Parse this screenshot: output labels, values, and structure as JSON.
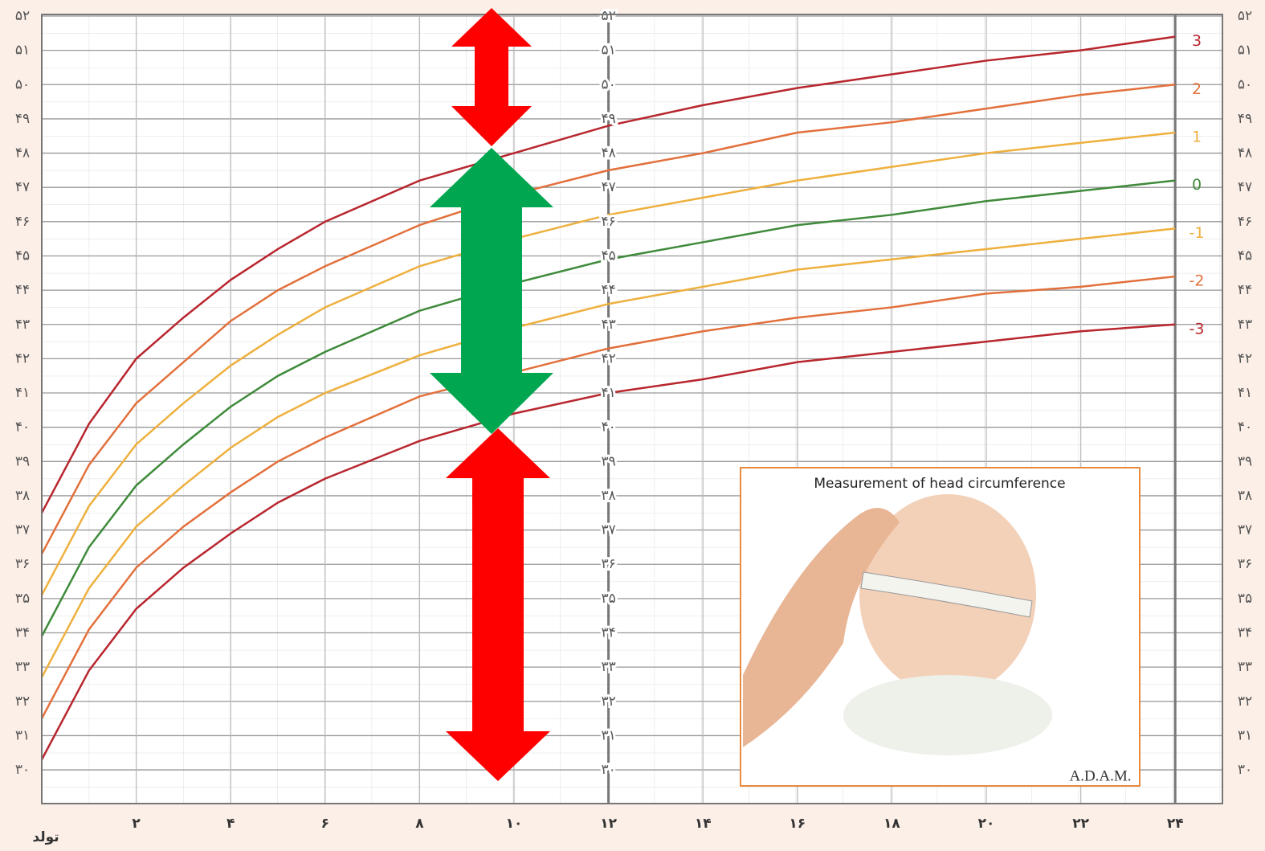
{
  "chart_data": {
    "type": "line",
    "x": [
      0,
      1,
      2,
      3,
      4,
      5,
      6,
      8,
      10,
      12,
      14,
      16,
      18,
      20,
      22,
      24
    ],
    "xlim": [
      0,
      25
    ],
    "xticks": [
      {
        "value": 0,
        "label": "تولد"
      },
      {
        "value": 2,
        "label": "۲"
      },
      {
        "value": 4,
        "label": "۴"
      },
      {
        "value": 6,
        "label": "۶"
      },
      {
        "value": 8,
        "label": "۸"
      },
      {
        "value": 10,
        "label": "۱۰"
      },
      {
        "value": 12,
        "label": "۱۲"
      },
      {
        "value": 14,
        "label": "۱۴"
      },
      {
        "value": 16,
        "label": "۱۶"
      },
      {
        "value": 18,
        "label": "۱۸"
      },
      {
        "value": 20,
        "label": "۲۰"
      },
      {
        "value": 22,
        "label": "۲۲"
      },
      {
        "value": 24,
        "label": "۲۴"
      }
    ],
    "ylim": [
      29,
      52
    ],
    "yticks": [
      {
        "value": 30,
        "label": "۳۰"
      },
      {
        "value": 31,
        "label": "۳۱"
      },
      {
        "value": 32,
        "label": "۳۲"
      },
      {
        "value": 33,
        "label": "۳۳"
      },
      {
        "value": 34,
        "label": "۳۴"
      },
      {
        "value": 35,
        "label": "۳۵"
      },
      {
        "value": 36,
        "label": "۳۶"
      },
      {
        "value": 37,
        "label": "۳۷"
      },
      {
        "value": 38,
        "label": "۳۸"
      },
      {
        "value": 39,
        "label": "۳۹"
      },
      {
        "value": 40,
        "label": "۴۰"
      },
      {
        "value": 41,
        "label": "۴۱"
      },
      {
        "value": 42,
        "label": "۴۲"
      },
      {
        "value": 43,
        "label": "۴۳"
      },
      {
        "value": 44,
        "label": "۴۴"
      },
      {
        "value": 45,
        "label": "۴۵"
      },
      {
        "value": 46,
        "label": "۴۶"
      },
      {
        "value": 47,
        "label": "۴۷"
      },
      {
        "value": 48,
        "label": "۴۸"
      },
      {
        "value": 49,
        "label": "۴۹"
      },
      {
        "value": 50,
        "label": "۵۰"
      },
      {
        "value": 51,
        "label": "۵۱"
      },
      {
        "value": 52,
        "label": "۵۲"
      }
    ],
    "grid": true,
    "series": [
      {
        "name": "3",
        "color": "#b8262e",
        "values": [
          37.5,
          40.1,
          42.0,
          43.2,
          44.3,
          45.2,
          46.0,
          47.2,
          48.0,
          48.8,
          49.4,
          49.9,
          50.3,
          50.7,
          51.0,
          51.4
        ]
      },
      {
        "name": "2",
        "color": "#e2703c",
        "values": [
          36.3,
          38.9,
          40.7,
          41.9,
          43.1,
          44.0,
          44.7,
          45.9,
          46.8,
          47.5,
          48.0,
          48.6,
          48.9,
          49.3,
          49.7,
          50.0
        ]
      },
      {
        "name": "1",
        "color": "#eeb03e",
        "values": [
          35.1,
          37.7,
          39.5,
          40.7,
          41.8,
          42.7,
          43.5,
          44.7,
          45.5,
          46.2,
          46.7,
          47.2,
          47.6,
          48.0,
          48.3,
          48.6
        ]
      },
      {
        "name": "0",
        "color": "#3f8a3b",
        "values": [
          33.9,
          36.5,
          38.3,
          39.5,
          40.6,
          41.5,
          42.2,
          43.4,
          44.2,
          44.9,
          45.4,
          45.9,
          46.2,
          46.6,
          46.9,
          47.2
        ]
      },
      {
        "name": "-1",
        "color": "#eeb03e",
        "values": [
          32.7,
          35.3,
          37.1,
          38.3,
          39.4,
          40.3,
          41.0,
          42.1,
          42.9,
          43.6,
          44.1,
          44.6,
          44.9,
          45.2,
          45.5,
          45.8
        ]
      },
      {
        "name": "-2",
        "color": "#e2703c",
        "values": [
          31.5,
          34.1,
          35.9,
          37.1,
          38.1,
          39.0,
          39.7,
          40.9,
          41.6,
          42.3,
          42.8,
          43.2,
          43.5,
          43.9,
          44.1,
          44.4
        ]
      },
      {
        "name": "-3",
        "color": "#b8262e",
        "values": [
          30.3,
          32.9,
          34.7,
          35.9,
          36.9,
          37.8,
          38.5,
          39.6,
          40.4,
          41.0,
          41.4,
          41.9,
          42.2,
          42.5,
          42.8,
          43.0
        ]
      }
    ],
    "inset_title": "Measurement of head circumference",
    "inset_credit": "A.D.A.M."
  }
}
